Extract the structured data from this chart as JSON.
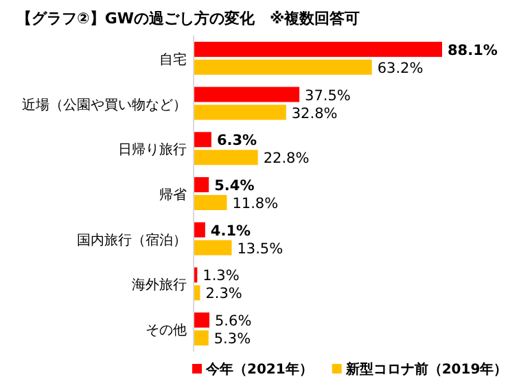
{
  "chart_data": {
    "type": "bar",
    "orientation": "horizontal",
    "title": "【グラフ②】GWの過ごし方の変化　※複数回答可",
    "categories": [
      "自宅",
      "近場（公園や買い物など）",
      "日帰り旅行",
      "帰省",
      "国内旅行（宿泊）",
      "海外旅行",
      "その他"
    ],
    "series": [
      {
        "name": "今年（2021年）",
        "color": "#ff0000",
        "values": [
          88.1,
          37.5,
          6.3,
          5.4,
          4.1,
          1.3,
          5.6
        ],
        "value_labels": [
          "**88.1%**",
          "37.5%",
          "**6.3%**",
          "**5.4%**",
          "**4.1%**",
          "1.3%",
          "5.6%"
        ]
      },
      {
        "name": "新型コロナ前（2019年）",
        "color": "#ffc000",
        "values": [
          63.2,
          32.8,
          22.8,
          11.8,
          13.5,
          2.3,
          5.3
        ],
        "value_labels": [
          "63.2%",
          "32.8%",
          "22.8%",
          "11.8%",
          "13.5%",
          "2.3%",
          "5.3%"
        ]
      }
    ],
    "legend": "bottom"
  }
}
